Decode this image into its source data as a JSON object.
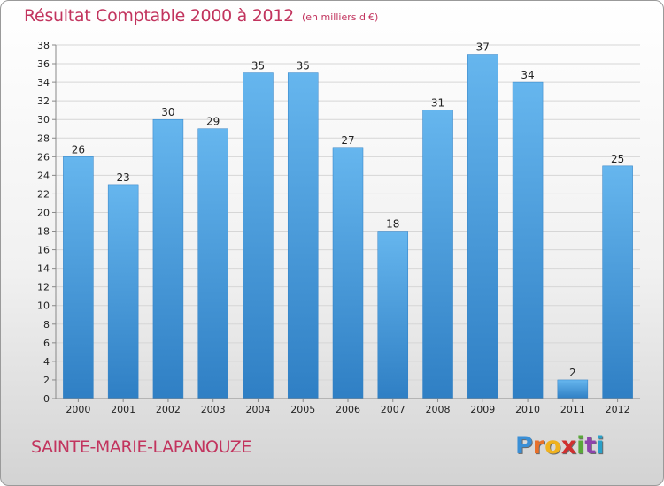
{
  "header": {
    "title": "Résultat Comptable 2000 à 2012",
    "subtitle": "(en milliers d'€)"
  },
  "footer": {
    "city": "SAINTE-MARIE-LAPANOUZE",
    "logo_letters": [
      "P",
      "r",
      "o",
      "x",
      "i",
      "t",
      "i"
    ],
    "logo_colors": [
      "#3a8fd6",
      "#e8702a",
      "#f0b21e",
      "#d03030",
      "#5aa83a",
      "#8e44ad",
      "#2aa0c8"
    ]
  },
  "colors": {
    "bar": "#4a9fe0",
    "bar_light": "#66b6ee",
    "bar_dark": "#2f7fc4",
    "grid": "#d6d6d6",
    "axis": "#888888"
  },
  "chart_data": {
    "type": "bar",
    "title": "Résultat Comptable 2000 à 2012",
    "subtitle": "(en milliers d'€)",
    "categories": [
      "2000",
      "2001",
      "2002",
      "2003",
      "2004",
      "2005",
      "2006",
      "2007",
      "2008",
      "2009",
      "2010",
      "2011",
      "2012"
    ],
    "values": [
      26,
      23,
      30,
      29,
      35,
      35,
      27,
      18,
      31,
      37,
      34,
      2,
      25
    ],
    "ylim": [
      0,
      38
    ],
    "yticks": [
      0,
      2,
      4,
      6,
      8,
      10,
      12,
      14,
      16,
      18,
      20,
      22,
      24,
      26,
      28,
      30,
      32,
      34,
      36,
      38
    ],
    "grid": true,
    "data_labels": true
  }
}
